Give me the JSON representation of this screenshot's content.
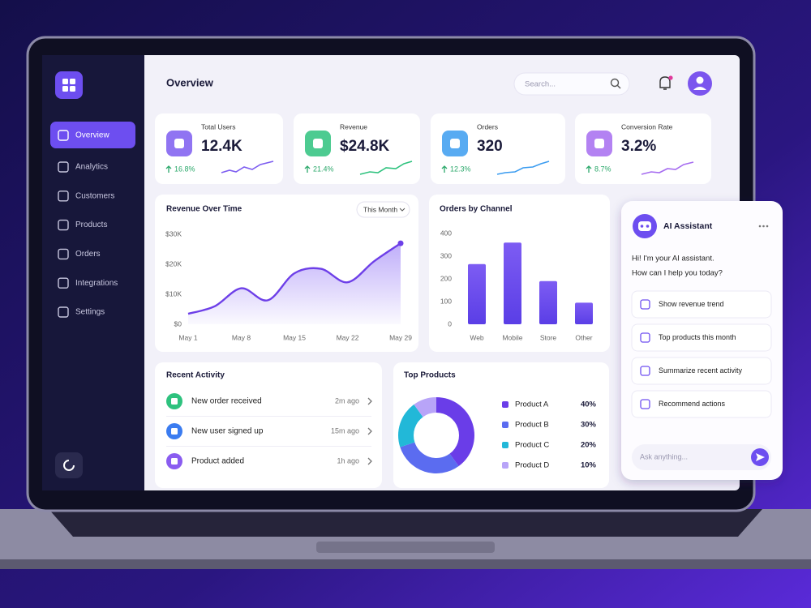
{
  "sidebar": {
    "nav": [
      "Overview",
      "Analytics",
      "Customers",
      "Products",
      "Orders",
      "Integrations",
      "Settings"
    ]
  },
  "header": {
    "title": "Overview",
    "search_placeholder": "Search..."
  },
  "kpis": [
    {
      "label": "Total Users",
      "value": "12.4K",
      "change": "16.8%"
    },
    {
      "label": "Revenue",
      "value": "$24.8K",
      "change": "21.4%"
    },
    {
      "label": "Orders",
      "value": "320",
      "change": "12.3%"
    },
    {
      "label": "Conversion Rate",
      "value": "3.2%",
      "change": "8.7%"
    }
  ],
  "chart_data": [
    {
      "type": "line",
      "title": "Revenue Over Time",
      "period_filter": "This Month",
      "categories": [
        "May 1",
        null,
        "May 8",
        null,
        "May 15",
        null,
        "May 22",
        null,
        "May 29"
      ],
      "values": [
        3500,
        6000,
        12000,
        8000,
        17000,
        18500,
        14000,
        21000,
        27000
      ],
      "color": "#6d3fe8",
      "ylim": [
        0,
        30000
      ],
      "yticks": [
        {
          "value": 0,
          "label": "$0"
        },
        {
          "value": 10000,
          "label": "$10K"
        },
        {
          "value": 20000,
          "label": "$20K"
        },
        {
          "value": 30000,
          "label": "$30K"
        }
      ]
    },
    {
      "type": "bar",
      "title": "Orders by Channel",
      "categories": [
        "Web",
        "Mobile",
        "Store",
        "Other"
      ],
      "values": [
        265,
        360,
        190,
        95
      ],
      "color": "#6a4cf0",
      "ylim": [
        0,
        400
      ],
      "yticks": [
        0,
        100,
        200,
        300,
        400
      ]
    },
    {
      "type": "pie",
      "title": "Top Products",
      "categories": [
        "Product A",
        "Product B",
        "Product C",
        "Product D"
      ],
      "values": [
        40,
        30,
        20,
        10
      ],
      "value_labels": [
        "40%",
        "30%",
        "20%",
        "10%"
      ],
      "colors": [
        "#6a3de8",
        "#5b6cf0",
        "#22b8d8",
        "#b8a4f8"
      ]
    }
  ],
  "recent_activity": {
    "title": "Recent Activity",
    "items": [
      {
        "text": "New order received",
        "time": "2m ago"
      },
      {
        "text": "New user signed up",
        "time": "15m ago"
      },
      {
        "text": "Product added",
        "time": "1h ago"
      }
    ]
  },
  "assistant": {
    "title": "AI Assistant",
    "greeting": [
      "Hi! I'm your AI assistant.",
      "How can I help you today?"
    ],
    "suggestions": [
      "Show revenue trend",
      "Top products this month",
      "Summarize recent activity",
      "Recommend actions"
    ],
    "input_placeholder": "Ask anything..."
  }
}
